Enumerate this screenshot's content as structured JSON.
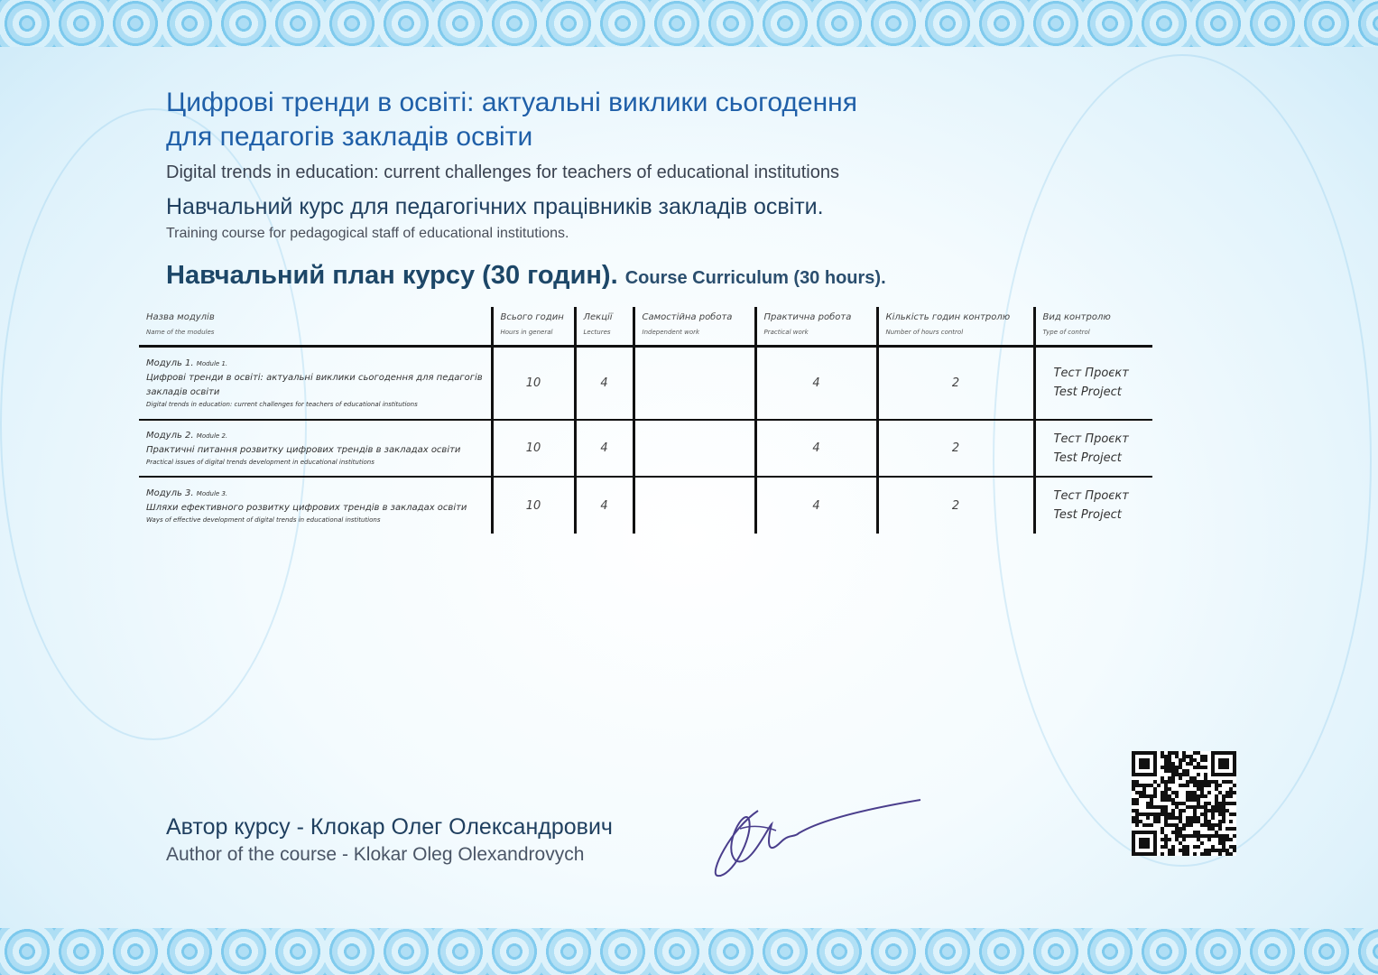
{
  "title": "Цифрові тренди в освіті: актуальні виклики сьогодення для педагогів закладів освіти",
  "title_line1": "Цифрові тренди в освіті: актуальні виклики сьогодення",
  "title_line2": "для педагогів закладів освіти",
  "title_en": "Digital trends in education: current challenges for teachers of educational institutions",
  "course_type": "Навчальний курс для педагогічних працівників закладів освіти.",
  "course_type_en": "Training course for pedagogical staff of educational institutions.",
  "plan_heading": "Навчальний план курсу (30 годин).",
  "plan_heading_en": "Course Curriculum (30 hours).",
  "table": {
    "headers": [
      {
        "uk": "Назва модулів",
        "en": "Name of the modules"
      },
      {
        "uk": "Всього годин",
        "en": "Hours in general"
      },
      {
        "uk": "Лекції",
        "en": "Lectures"
      },
      {
        "uk": "Самостійна робота",
        "en": "Independent work"
      },
      {
        "uk": "Практична робота",
        "en": "Practical work"
      },
      {
        "uk": "Кількість годин контролю",
        "en": "Number of hours control"
      },
      {
        "uk": "Вид контролю",
        "en": "Type of control"
      }
    ],
    "rows": [
      {
        "label_uk": "Модуль 1.",
        "label_en": "Module 1.",
        "name_uk": "Цифрові тренди в освіті: актуальні виклики сьогодення для педагогів закладів освіти",
        "name_en": "Digital trends in education: current challenges for teachers of educational institutions",
        "total": "10",
        "lectures": "4",
        "independent": "",
        "practical": "4",
        "control_hours": "2",
        "control_uk": "Тест Проєкт",
        "control_en": "Test Project"
      },
      {
        "label_uk": "Модуль 2.",
        "label_en": "Module 2.",
        "name_uk": "Практичні питання розвитку цифрових трендів в закладах освіти",
        "name_en": "Practical issues of digital trends development in educational institutions",
        "total": "10",
        "lectures": "4",
        "independent": "",
        "practical": "4",
        "control_hours": "2",
        "control_uk": "Тест Проєкт",
        "control_en": "Test Project"
      },
      {
        "label_uk": "Модуль 3.",
        "label_en": "Module 3.",
        "name_uk": "Шляхи ефективного розвитку цифрових трендів в закладах освіти",
        "name_en": "Ways of effective development of digital trends in educational institutions",
        "total": "10",
        "lectures": "4",
        "independent": "",
        "practical": "4",
        "control_hours": "2",
        "control_uk": "Тест Проєкт",
        "control_en": "Test Project"
      }
    ]
  },
  "author": "Автор курсу - Клокар Олег Олександрович",
  "author_en": "Author of the course - Klokar Oleg Olexandrovych",
  "colors": {
    "title": "#1f5fa8",
    "heading": "#1d4768",
    "border_blue": "#5fbde9"
  }
}
